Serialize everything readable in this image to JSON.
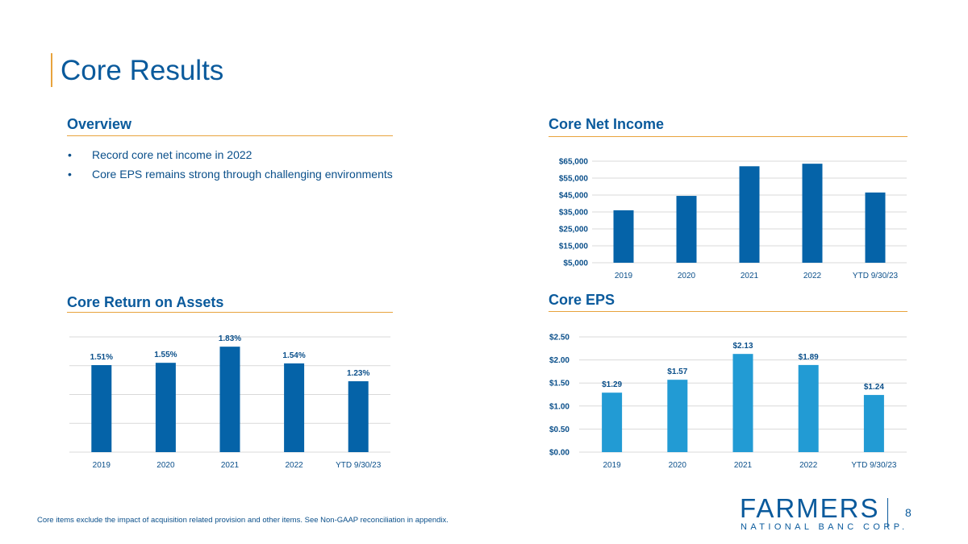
{
  "slide": {
    "title": "Core Results",
    "page_number": "8",
    "footnote": "Core items exclude the impact of acquisition related provision and other items. See Non-GAAP reconciliation in appendix."
  },
  "overview": {
    "heading": "Overview",
    "bullets": [
      "Record core net income in 2022",
      "Core EPS remains strong through challenging environments"
    ]
  },
  "logo": {
    "name": "FARMERS",
    "subtitle": "NATIONAL BANC CORP."
  },
  "colors": {
    "dark_blue": "#0563a8",
    "light_blue": "#229bd4",
    "accent": "#e8a33d",
    "grid": "#d9d9d9"
  },
  "chart_data": [
    {
      "id": "net-income",
      "type": "bar",
      "title": "Core Net Income",
      "categories": [
        "2019",
        "2020",
        "2021",
        "2022",
        "YTD 9/30/23"
      ],
      "values": [
        36000,
        44500,
        62000,
        63500,
        46500
      ],
      "ylim": [
        5000,
        65000
      ],
      "yticks": [
        5000,
        15000,
        25000,
        35000,
        45000,
        55000,
        65000
      ],
      "ytick_labels": [
        "$5,000",
        "$15,000",
        "$25,000",
        "$35,000",
        "$45,000",
        "$55,000",
        "$65,000"
      ],
      "data_labels": [],
      "xlabel": "",
      "ylabel": "",
      "color": "#0563a8",
      "grid": true
    },
    {
      "id": "roa",
      "type": "bar",
      "title": "Core Return on Assets",
      "categories": [
        "2019",
        "2020",
        "2021",
        "2022",
        "YTD 9/30/23"
      ],
      "values": [
        1.51,
        1.55,
        1.83,
        1.54,
        1.23
      ],
      "ylim": [
        0,
        2.0
      ],
      "yticks": [
        0,
        0.5,
        1.0,
        1.5,
        2.0
      ],
      "ytick_labels": [],
      "data_labels": [
        "1.51%",
        "1.55%",
        "1.83%",
        "1.54%",
        "1.23%"
      ],
      "xlabel": "",
      "ylabel": "",
      "color": "#0563a8",
      "grid": true
    },
    {
      "id": "eps",
      "type": "bar",
      "title": "Core EPS",
      "categories": [
        "2019",
        "2020",
        "2021",
        "2022",
        "YTD 9/30/23"
      ],
      "values": [
        1.29,
        1.57,
        2.13,
        1.89,
        1.24
      ],
      "ylim": [
        0,
        2.5
      ],
      "yticks": [
        0,
        0.5,
        1.0,
        1.5,
        2.0,
        2.5
      ],
      "ytick_labels": [
        "$0.00",
        "$0.50",
        "$1.00",
        "$1.50",
        "$2.00",
        "$2.50"
      ],
      "data_labels": [
        "$1.29",
        "$1.57",
        "$2.13",
        "$1.89",
        "$1.24"
      ],
      "xlabel": "",
      "ylabel": "",
      "color": "#229bd4",
      "grid": true
    }
  ]
}
